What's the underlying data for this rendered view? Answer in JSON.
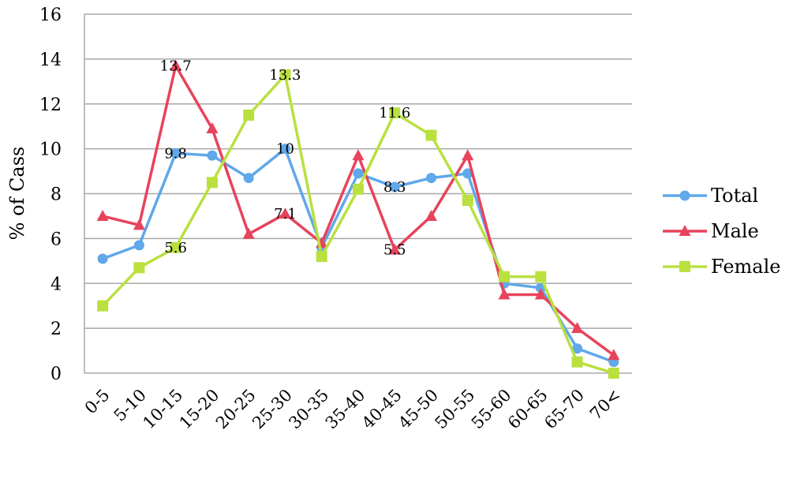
{
  "chart_data": {
    "type": "line",
    "title": "",
    "xlabel": "",
    "ylabel": "% of Cass",
    "categories": [
      "0-5",
      "5-10",
      "10-15",
      "15-20",
      "20-25",
      "25-30",
      "30-35",
      "35-40",
      "40-45",
      "45-50",
      "50-55",
      "55-60",
      "60-65",
      "65-70",
      "70<"
    ],
    "ylim": [
      0,
      16
    ],
    "yticks": [
      0,
      2,
      4,
      6,
      8,
      10,
      12,
      14,
      16
    ],
    "grid": true,
    "legend": "right",
    "series": [
      {
        "name": "Total",
        "color": "#5fa8ea",
        "marker": "circle",
        "values": [
          5.1,
          5.7,
          9.8,
          9.7,
          8.7,
          10.0,
          5.6,
          8.9,
          8.3,
          8.7,
          8.9,
          4.0,
          3.8,
          1.1,
          0.5
        ]
      },
      {
        "name": "Male",
        "color": "#e8435c",
        "marker": "triangle",
        "values": [
          7.0,
          6.6,
          13.7,
          10.9,
          6.2,
          7.1,
          5.8,
          9.7,
          5.5,
          7.0,
          9.7,
          3.5,
          3.5,
          2.0,
          0.8
        ]
      },
      {
        "name": "Female",
        "color": "#b9e03f",
        "marker": "square",
        "values": [
          3.0,
          4.7,
          5.6,
          8.5,
          11.5,
          13.3,
          5.2,
          8.2,
          11.6,
          10.6,
          7.7,
          4.3,
          4.3,
          0.5,
          0.0
        ]
      }
    ],
    "data_labels": [
      {
        "series": "Male",
        "index": 2,
        "text": "13.7"
      },
      {
        "series": "Female",
        "index": 5,
        "text": "13.3"
      },
      {
        "series": "Total",
        "index": 2,
        "text": "9.8"
      },
      {
        "series": "Total",
        "index": 5,
        "text": "10"
      },
      {
        "series": "Male",
        "index": 5,
        "text": "7.1"
      },
      {
        "series": "Female",
        "index": 2,
        "text": "5.6"
      },
      {
        "series": "Female",
        "index": 8,
        "text": "11.6"
      },
      {
        "series": "Total",
        "index": 8,
        "text": "8.3"
      },
      {
        "series": "Male",
        "index": 8,
        "text": "5.5"
      }
    ]
  }
}
